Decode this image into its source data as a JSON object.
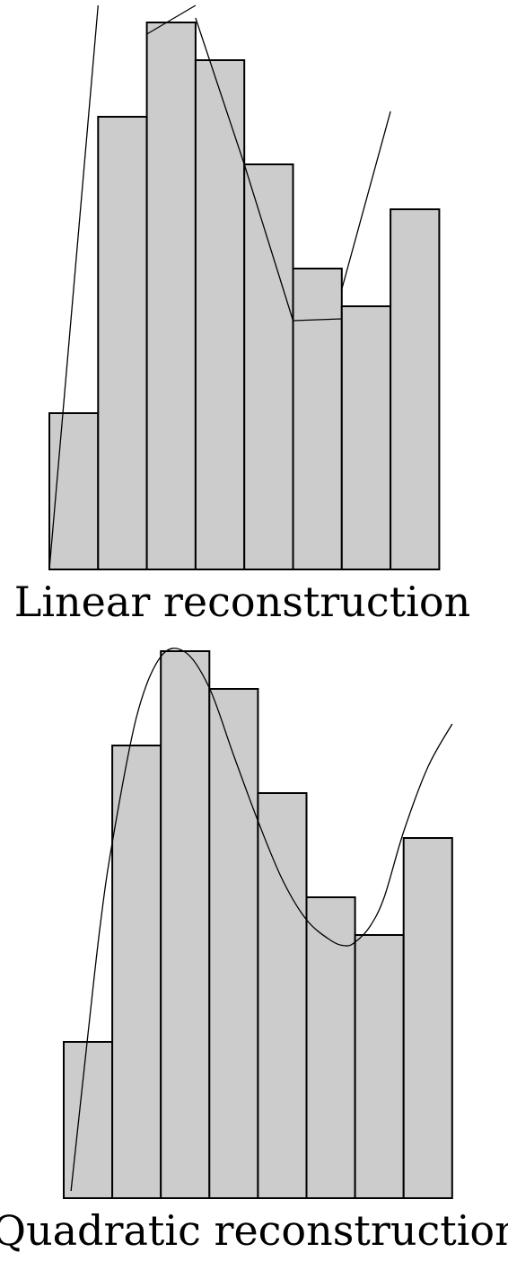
{
  "diagrams": [
    {
      "caption": "Linear reconstruction",
      "bar_values": [
        174,
        504,
        609,
        567,
        451,
        335,
        293,
        401
      ],
      "line_segments": [
        [
          [
            0,
            0
          ],
          [
            1,
            628
          ]
        ],
        [
          [
            2,
            596
          ],
          [
            3,
            628
          ]
        ],
        [
          [
            3,
            614
          ],
          [
            4,
            451
          ]
        ],
        [
          [
            4,
            451
          ],
          [
            5,
            277
          ]
        ],
        [
          [
            5,
            277
          ],
          [
            6,
            279
          ]
        ],
        [
          [
            6,
            312
          ],
          [
            7,
            510
          ]
        ]
      ]
    },
    {
      "caption": "Quadratic reconstruction",
      "bar_values": [
        174,
        504,
        609,
        567,
        451,
        335,
        293,
        401
      ],
      "curve_points": [
        [
          0.15,
          8
        ],
        [
          0.5,
          183
        ],
        [
          0.75,
          303
        ],
        [
          1,
          396
        ],
        [
          1.5,
          536
        ],
        [
          2,
          603
        ],
        [
          2.5,
          608
        ],
        [
          3,
          568
        ],
        [
          3.5,
          493
        ],
        [
          4,
          420
        ],
        [
          4.5,
          355
        ],
        [
          5,
          310
        ],
        [
          5.5,
          287
        ],
        [
          5.8,
          281
        ],
        [
          6,
          285
        ],
        [
          6.3,
          302
        ],
        [
          6.6,
          335
        ],
        [
          7,
          408
        ],
        [
          7.5,
          480
        ],
        [
          8,
          528
        ]
      ]
    }
  ]
}
